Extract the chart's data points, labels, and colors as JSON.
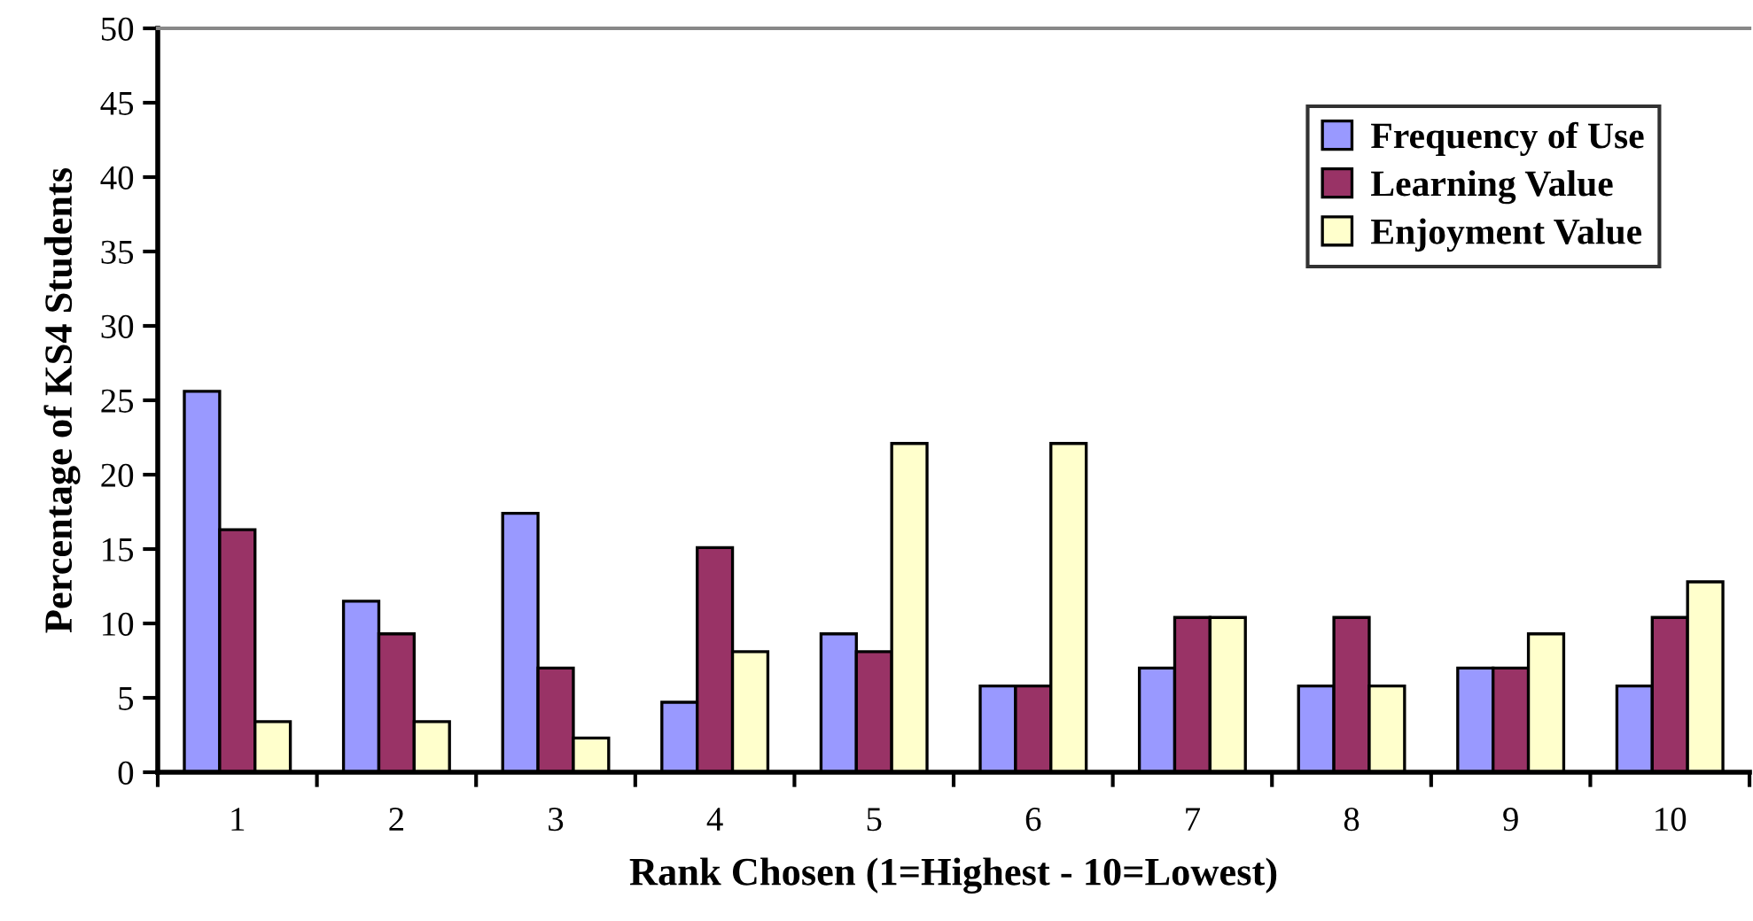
{
  "chart_data": {
    "type": "bar",
    "xlabel": "Rank Chosen (1=Highest - 10=Lowest)",
    "ylabel": "Percentage of KS4 Students",
    "categories": [
      "1",
      "2",
      "3",
      "4",
      "5",
      "6",
      "7",
      "8",
      "9",
      "10"
    ],
    "series": [
      {
        "name": "Frequency of Use",
        "color": "#9999ff",
        "values": [
          25.6,
          11.5,
          17.4,
          4.7,
          9.3,
          5.8,
          7.0,
          5.8,
          7.0,
          5.8
        ]
      },
      {
        "name": "Learning Value",
        "color": "#993366",
        "values": [
          16.3,
          9.3,
          7.0,
          15.1,
          8.1,
          5.8,
          10.4,
          10.4,
          7.0,
          10.4
        ]
      },
      {
        "name": "Enjoyment Value",
        "color": "#ffffcc",
        "values": [
          3.4,
          3.4,
          2.3,
          8.1,
          22.1,
          22.1,
          10.4,
          5.8,
          9.3,
          12.8
        ]
      }
    ],
    "ylim": [
      0,
      50
    ],
    "yticks": [
      0,
      5,
      10,
      15,
      20,
      25,
      30,
      35,
      40,
      45,
      50
    ],
    "grid": false,
    "legend": "top right"
  }
}
